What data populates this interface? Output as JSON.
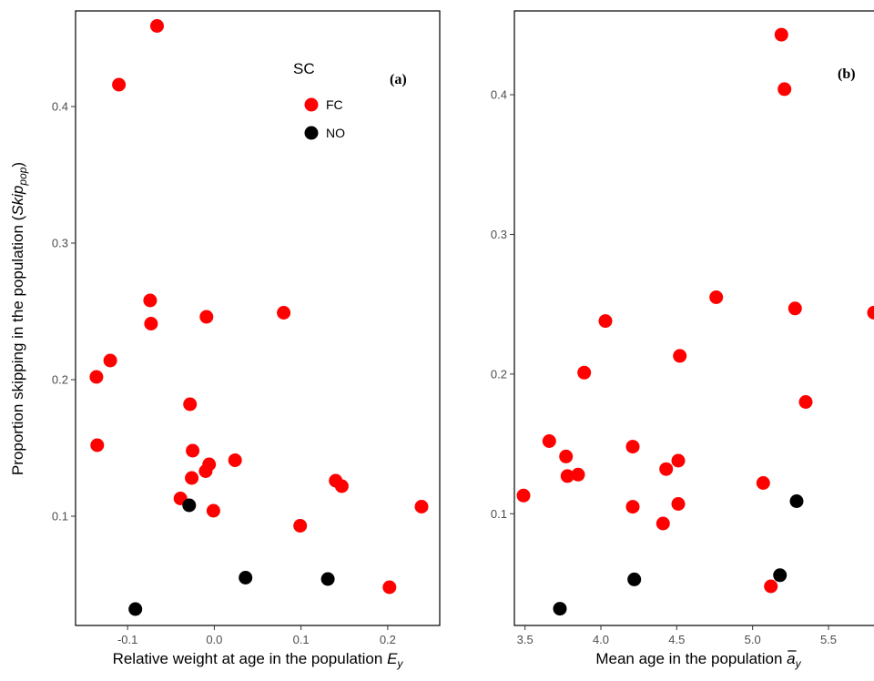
{
  "chart_data": [
    {
      "type": "scatter",
      "panel_label": "(a)",
      "xlabel_text": "Relative weight at age in the population ",
      "xlabel_symbol": "E",
      "xlabel_subscript": "y",
      "ylabel_text": "Proportion skipping in the population ",
      "ylabel_symbol": "Skip",
      "ylabel_subscript": "pop",
      "xlim": [
        -0.16,
        0.26
      ],
      "ylim": [
        0.02,
        0.47
      ],
      "x_ticks": [
        -0.1,
        0.0,
        0.1,
        0.2
      ],
      "x_tick_labels": [
        "-0.1",
        "0.0",
        "0.1",
        "0.2"
      ],
      "y_ticks": [
        0.1,
        0.2,
        0.3,
        0.4
      ],
      "y_tick_labels": [
        "0.1",
        "0.2",
        "0.3",
        "0.4"
      ],
      "grid": false,
      "legend": {
        "title": "SC",
        "position": "top-right",
        "entries": [
          {
            "label": "FC",
            "color": "#ff0000"
          },
          {
            "label": "NO",
            "color": "#000000"
          }
        ]
      },
      "series": [
        {
          "name": "FC",
          "color": "#ff0000",
          "points": [
            [
              -0.066,
              0.459
            ],
            [
              -0.11,
              0.416
            ],
            [
              -0.074,
              0.258
            ],
            [
              -0.073,
              0.241
            ],
            [
              -0.009,
              0.246
            ],
            [
              0.08,
              0.249
            ],
            [
              -0.12,
              0.214
            ],
            [
              -0.136,
              0.202
            ],
            [
              -0.028,
              0.182
            ],
            [
              -0.135,
              0.152
            ],
            [
              -0.025,
              0.148
            ],
            [
              0.024,
              0.141
            ],
            [
              -0.006,
              0.138
            ],
            [
              -0.01,
              0.133
            ],
            [
              -0.026,
              0.128
            ],
            [
              -0.039,
              0.113
            ],
            [
              0.14,
              0.126
            ],
            [
              0.147,
              0.122
            ],
            [
              -0.001,
              0.104
            ],
            [
              0.239,
              0.107
            ],
            [
              0.099,
              0.093
            ],
            [
              0.202,
              0.048
            ]
          ]
        },
        {
          "name": "NO",
          "color": "#000000",
          "points": [
            [
              -0.029,
              0.108
            ],
            [
              0.036,
              0.055
            ],
            [
              0.131,
              0.054
            ],
            [
              -0.091,
              0.032
            ]
          ]
        }
      ]
    },
    {
      "type": "scatter",
      "panel_label": "(b)",
      "xlabel_text": "Mean age in the population ",
      "xlabel_symbol": "a",
      "xlabel_subscript": "y",
      "xlim": [
        3.43,
        5.86
      ],
      "ylim": [
        0.02,
        0.46
      ],
      "x_ticks": [
        3.5,
        4.0,
        4.5,
        5.0,
        5.5
      ],
      "x_tick_labels": [
        "3.5",
        "4.0",
        "4.5",
        "5.0",
        "5.5"
      ],
      "y_ticks": [
        0.1,
        0.2,
        0.3,
        0.4
      ],
      "y_tick_labels": [
        "0.1",
        "0.2",
        "0.3",
        "0.4"
      ],
      "grid": false,
      "series": [
        {
          "name": "FC",
          "color": "#ff0000",
          "points": [
            [
              5.19,
              0.443
            ],
            [
              5.21,
              0.404
            ],
            [
              4.76,
              0.255
            ],
            [
              5.28,
              0.247
            ],
            [
              5.8,
              0.244
            ],
            [
              4.03,
              0.238
            ],
            [
              4.52,
              0.213
            ],
            [
              3.89,
              0.201
            ],
            [
              5.35,
              0.18
            ],
            [
              3.66,
              0.152
            ],
            [
              4.21,
              0.148
            ],
            [
              3.77,
              0.141
            ],
            [
              4.51,
              0.138
            ],
            [
              4.43,
              0.132
            ],
            [
              3.78,
              0.127
            ],
            [
              3.85,
              0.128
            ],
            [
              5.07,
              0.122
            ],
            [
              3.49,
              0.113
            ],
            [
              4.21,
              0.105
            ],
            [
              4.51,
              0.107
            ],
            [
              4.41,
              0.093
            ],
            [
              5.12,
              0.048
            ]
          ]
        },
        {
          "name": "NO",
          "color": "#000000",
          "points": [
            [
              5.29,
              0.109
            ],
            [
              4.22,
              0.053
            ],
            [
              5.18,
              0.056
            ],
            [
              3.73,
              0.032
            ]
          ]
        }
      ]
    }
  ]
}
